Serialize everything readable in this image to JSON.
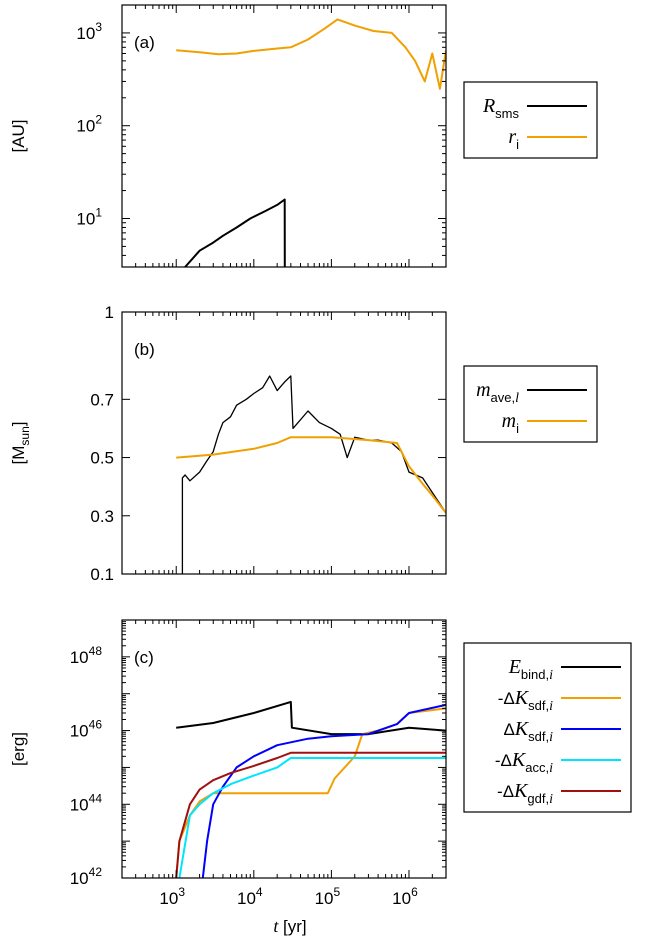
{
  "chart_data": [
    {
      "type": "line",
      "panel_label": "(a)",
      "ylabel": "[AU]",
      "yscale": "log",
      "xscale": "log",
      "xlim": [
        200,
        3000000
      ],
      "ylim": [
        3,
        2000
      ],
      "yticks": [
        {
          "value": 10,
          "base": "10",
          "exp": "1"
        },
        {
          "value": 100,
          "base": "10",
          "exp": "2"
        },
        {
          "value": 1000,
          "base": "10",
          "exp": "3"
        }
      ],
      "series": [
        {
          "name": "R",
          "sub": "sms",
          "color": "#000000",
          "x": [
            1300,
            2000,
            3000,
            4000,
            6000,
            9000,
            14000,
            20000,
            25000,
            25100
          ],
          "y": [
            3,
            4.5,
            5.5,
            6.5,
            8,
            10,
            12,
            14,
            16,
            3
          ]
        },
        {
          "name": "r",
          "sub": "i",
          "color": "#f0a000",
          "x": [
            1000,
            2000,
            3500,
            6000,
            10000,
            20000,
            30000,
            50000,
            80000,
            120000,
            200000,
            350000,
            600000,
            900000,
            1200000,
            1600000,
            2000000,
            2500000,
            3000000
          ],
          "y": [
            650,
            620,
            590,
            600,
            640,
            680,
            700,
            850,
            1100,
            1400,
            1200,
            1050,
            1000,
            700,
            500,
            300,
            600,
            250,
            650
          ]
        }
      ]
    },
    {
      "type": "line",
      "panel_label": "(b)",
      "ylabel": "[M",
      "ylabel_sub": "sun",
      "ylabel_end": "]",
      "yscale": "linear",
      "xscale": "log",
      "xlim": [
        200,
        3000000
      ],
      "ylim": [
        0.1,
        1
      ],
      "yticks": [
        {
          "value": 0.1,
          "label": "0.1"
        },
        {
          "value": 0.3,
          "label": "0.3"
        },
        {
          "value": 0.5,
          "label": "0.5"
        },
        {
          "value": 0.7,
          "label": "0.7"
        },
        {
          "value": 1,
          "label": "1"
        }
      ],
      "series": [
        {
          "name": "m",
          "sub": "ave,",
          "sub_it": "l",
          "color": "#000000",
          "x": [
            1200,
            1200,
            1300,
            1500,
            2000,
            2500,
            3000,
            3500,
            4000,
            5000,
            6000,
            8000,
            10000,
            13000,
            16000,
            20000,
            25000,
            30000,
            32000,
            50000,
            70000,
            100000,
            130000,
            160000,
            200000,
            300000,
            400000,
            600000,
            800000,
            1000000,
            1500000,
            2000000,
            3000000
          ],
          "y": [
            0.1,
            0.43,
            0.44,
            0.42,
            0.45,
            0.49,
            0.52,
            0.58,
            0.62,
            0.64,
            0.68,
            0.7,
            0.72,
            0.74,
            0.78,
            0.73,
            0.76,
            0.78,
            0.6,
            0.66,
            0.62,
            0.6,
            0.58,
            0.5,
            0.57,
            0.56,
            0.56,
            0.55,
            0.52,
            0.45,
            0.43,
            0.38,
            0.31
          ]
        },
        {
          "name": "m",
          "sub": "i",
          "color": "#f0a000",
          "x": [
            1000,
            3000,
            10000,
            20000,
            30000,
            100000,
            300000,
            700000,
            1000000,
            1500000,
            2000000,
            3000000
          ],
          "y": [
            0.5,
            0.51,
            0.53,
            0.55,
            0.57,
            0.57,
            0.56,
            0.55,
            0.47,
            0.41,
            0.37,
            0.31
          ]
        }
      ]
    },
    {
      "type": "line",
      "panel_label": "(c)",
      "ylabel": "[erg]",
      "xlabel_var": "t",
      "xlabel_rest": " [yr]",
      "yscale": "log",
      "xscale": "log",
      "xlim": [
        200,
        3000000
      ],
      "ylim": [
        1e+42,
        1e+49
      ],
      "xticks": [
        {
          "value": 1000,
          "base": "10",
          "exp": "3"
        },
        {
          "value": 10000,
          "base": "10",
          "exp": "4"
        },
        {
          "value": 100000,
          "base": "10",
          "exp": "5"
        },
        {
          "value": 1000000,
          "base": "10",
          "exp": "6"
        }
      ],
      "yticks": [
        {
          "value": 1e+42,
          "base": "10",
          "exp": "42"
        },
        {
          "value": 1e+44,
          "base": "10",
          "exp": "44"
        },
        {
          "value": 1e+46,
          "base": "10",
          "exp": "46"
        },
        {
          "value": 1e+48,
          "base": "10",
          "exp": "48"
        }
      ],
      "series": [
        {
          "name": "E",
          "prefix": "",
          "sub": "bind,",
          "sub_it": "i",
          "color": "#000000",
          "x": [
            1000,
            3000,
            10000,
            30000,
            31000,
            100000,
            300000,
            1000000,
            3000000
          ],
          "y": [
            1.2e+46,
            1.6e+46,
            3e+46,
            6e+46,
            1.2e+46,
            8e+45,
            8e+45,
            1.2e+46,
            1e+46
          ]
        },
        {
          "name": "K",
          "prefix": "-Δ",
          "sub": "sdf,",
          "sub_it": "i",
          "color": "#f0a000",
          "x": [
            1000,
            1100,
            1500,
            2000,
            3000,
            5000,
            10000,
            30000,
            90000,
            110000,
            200000,
            250000,
            400000,
            700000,
            1000000,
            3000000
          ],
          "y": [
            1e+42,
            1e+43,
            5e+43,
            1.2e+44,
            2e+44,
            2e+44,
            2e+44,
            2e+44,
            2e+44,
            5e+44,
            2e+45,
            8e+45,
            1e+46,
            1.5e+46,
            3e+46,
            4e+46
          ]
        },
        {
          "name": "K",
          "prefix": "Δ",
          "sub": "sdf,",
          "sub_it": "i",
          "color": "#0000ff",
          "x": [
            2200,
            2500,
            3000,
            4000,
            6000,
            10000,
            20000,
            50000,
            100000,
            300000,
            700000,
            1000000,
            3000000
          ],
          "y": [
            1e+42,
            1e+43,
            1e+44,
            3e+44,
            1e+45,
            2e+45,
            4e+45,
            6e+45,
            7e+45,
            8e+45,
            1.5e+46,
            3e+46,
            5e+46
          ]
        },
        {
          "name": "K",
          "prefix": "-Δ",
          "sub": "acc,",
          "sub_it": "i",
          "color": "#00e5ff",
          "x": [
            1100,
            1500,
            2000,
            3000,
            5000,
            10000,
            20000,
            30000,
            100000,
            1000000,
            3000000
          ],
          "y": [
            1e+42,
            5e+43,
            1e+44,
            2e+44,
            3.5e+44,
            6e+44,
            1e+45,
            1.8e+45,
            1.8e+45,
            1.8e+45,
            1.8e+45
          ]
        },
        {
          "name": "K",
          "prefix": "-Δ",
          "sub": "gdf,",
          "sub_it": "i",
          "color": "#a01010",
          "x": [
            1000,
            1100,
            1500,
            2000,
            3000,
            5000,
            10000,
            20000,
            30000,
            100000,
            1000000,
            3000000
          ],
          "y": [
            1e+42,
            1e+43,
            1e+44,
            2.5e+44,
            4.5e+44,
            7e+44,
            1.1e+45,
            1.8e+45,
            2.5e+45,
            2.5e+45,
            2.5e+45,
            2.5e+45
          ]
        }
      ]
    }
  ]
}
